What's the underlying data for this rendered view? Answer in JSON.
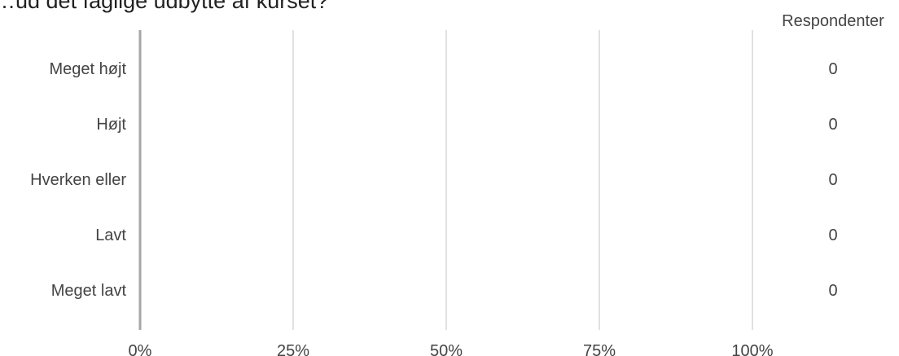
{
  "chart_data": {
    "type": "bar",
    "orientation": "horizontal",
    "title": "…ud det faglige udbytte af kurset?",
    "categories": [
      "Meget højt",
      "Højt",
      "Hverken eller",
      "Lavt",
      "Meget lavt"
    ],
    "values": [
      0,
      0,
      0,
      0,
      0
    ],
    "respondents_header": "Respondenter",
    "respondents": [
      "0",
      "0",
      "0",
      "0",
      "0"
    ],
    "x_ticks": [
      "0%",
      "25%",
      "50%",
      "75%",
      "100%"
    ],
    "x_tick_values": [
      0,
      25,
      50,
      75,
      100
    ],
    "xlim": [
      0,
      100
    ],
    "grid": true,
    "colors": {
      "axis": "#a6a6a6",
      "grid": "#c3c3c3",
      "label": "#444444",
      "bar": "#4472c4"
    }
  }
}
